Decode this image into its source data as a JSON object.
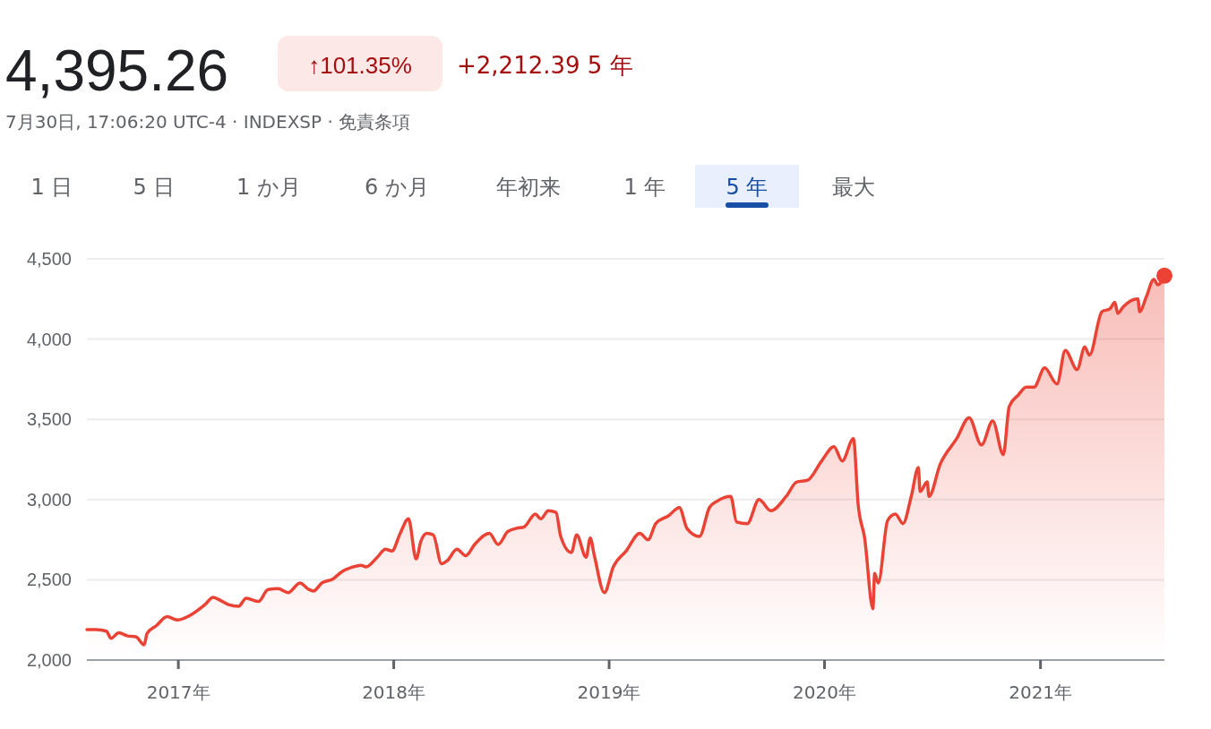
{
  "chart_data": {
    "type": "area",
    "title": "4,395.26",
    "subtitle": "7月30日, 17:06:20 UTC-4 · INDEXSP · 免責条項",
    "annotations": [
      "↑101.35%",
      "+2,212.39 5 年",
      "1 日",
      "5 日",
      "1 か月",
      "6 か月",
      "年初来",
      "1 年",
      "5 年",
      "最大"
    ],
    "xlim": [
      "2016-07-30",
      "2021-07-30"
    ],
    "xticks": [
      {
        "value": "2017-01-01",
        "label": "2017年"
      },
      {
        "value": "2018-01-01",
        "label": "2018年"
      },
      {
        "value": "2019-01-01",
        "label": "2019年"
      },
      {
        "value": "2020-01-01",
        "label": "2020年"
      },
      {
        "value": "2021-01-01",
        "label": "2021年"
      }
    ],
    "ylim": [
      2000,
      4500
    ],
    "yticks": [
      {
        "value": 2000,
        "label": "2,000"
      },
      {
        "value": 2500,
        "label": "2,500"
      },
      {
        "value": 3000,
        "label": "3,000"
      },
      {
        "value": 3500,
        "label": "3,500"
      },
      {
        "value": 4000,
        "label": "4,000"
      },
      {
        "value": 4500,
        "label": "4,500"
      }
    ],
    "grid": "y",
    "marker": "none",
    "line_style": "solid",
    "series": [
      {
        "color": "#ea4335",
        "x": [
          "2016-07-30",
          "2016-08-15",
          "2016-09-01",
          "2016-09-09",
          "2016-09-22",
          "2016-10-07",
          "2016-10-21",
          "2016-11-04",
          "2016-11-09",
          "2016-11-25",
          "2016-12-13",
          "2016-12-30",
          "2017-01-26",
          "2017-02-15",
          "2017-03-01",
          "2017-03-14",
          "2017-03-27",
          "2017-04-13",
          "2017-04-26",
          "2017-05-17",
          "2017-06-02",
          "2017-06-19",
          "2017-07-06",
          "2017-07-26",
          "2017-08-10",
          "2017-08-18",
          "2017-09-01",
          "2017-09-20",
          "2017-10-05",
          "2017-10-20",
          "2017-11-07",
          "2017-11-15",
          "2017-12-04",
          "2017-12-18",
          "2017-12-29",
          "2018-01-12",
          "2018-01-26",
          "2018-02-08",
          "2018-02-16",
          "2018-02-26",
          "2018-03-09",
          "2018-03-23",
          "2018-04-02",
          "2018-04-18",
          "2018-05-03",
          "2018-05-18",
          "2018-06-12",
          "2018-06-27",
          "2018-07-13",
          "2018-07-27",
          "2018-08-10",
          "2018-08-29",
          "2018-09-07",
          "2018-09-20",
          "2018-10-03",
          "2018-10-11",
          "2018-10-29",
          "2018-11-07",
          "2018-11-23",
          "2018-11-30",
          "2018-12-07",
          "2018-12-24",
          "2019-01-08",
          "2019-01-30",
          "2019-02-22",
          "2019-03-08",
          "2019-03-21",
          "2019-04-12",
          "2019-04-30",
          "2019-05-13",
          "2019-06-03",
          "2019-06-20",
          "2019-07-03",
          "2019-07-26",
          "2019-08-05",
          "2019-08-23",
          "2019-09-12",
          "2019-10-02",
          "2019-10-28",
          "2019-11-15",
          "2019-12-03",
          "2019-12-27",
          "2020-01-17",
          "2020-01-31",
          "2020-02-19",
          "2020-02-27",
          "2020-03-09",
          "2020-03-23",
          "2020-03-26",
          "2020-04-01",
          "2020-04-17",
          "2020-04-30",
          "2020-05-13",
          "2020-05-27",
          "2020-06-08",
          "2020-06-11",
          "2020-06-23",
          "2020-06-26",
          "2020-07-15",
          "2020-08-12",
          "2020-09-02",
          "2020-09-23",
          "2020-10-12",
          "2020-10-30",
          "2020-11-09",
          "2020-11-24",
          "2020-12-08",
          "2020-12-21",
          "2021-01-08",
          "2021-01-29",
          "2021-02-12",
          "2021-03-04",
          "2021-03-17",
          "2021-03-25",
          "2021-04-15",
          "2021-04-29",
          "2021-05-07",
          "2021-05-12",
          "2021-05-21",
          "2021-06-15",
          "2021-06-18",
          "2021-06-29",
          "2021-07-12",
          "2021-07-19",
          "2021-07-30"
        ],
        "values": [
          2190,
          2190,
          2180,
          2135,
          2170,
          2150,
          2145,
          2095,
          2165,
          2215,
          2270,
          2250,
          2290,
          2345,
          2390,
          2370,
          2345,
          2335,
          2385,
          2365,
          2440,
          2445,
          2420,
          2480,
          2440,
          2430,
          2480,
          2505,
          2550,
          2575,
          2590,
          2580,
          2640,
          2690,
          2680,
          2790,
          2880,
          2630,
          2740,
          2790,
          2780,
          2600,
          2620,
          2690,
          2650,
          2720,
          2790,
          2720,
          2800,
          2820,
          2830,
          2910,
          2880,
          2930,
          2920,
          2770,
          2670,
          2780,
          2640,
          2760,
          2650,
          2420,
          2580,
          2680,
          2790,
          2750,
          2850,
          2900,
          2950,
          2820,
          2770,
          2950,
          2990,
          3020,
          2860,
          2850,
          3000,
          2930,
          3020,
          3110,
          3120,
          3240,
          3330,
          3240,
          3380,
          2970,
          2760,
          2320,
          2540,
          2480,
          2870,
          2910,
          2850,
          3020,
          3200,
          3050,
          3110,
          3020,
          3220,
          3380,
          3510,
          3340,
          3490,
          3280,
          3580,
          3650,
          3700,
          3700,
          3820,
          3720,
          3930,
          3810,
          3950,
          3900,
          4170,
          4190,
          4230,
          4160,
          4200,
          4250,
          4170,
          4260,
          4372,
          4338,
          4395
        ]
      },
      {
        "type": "scatter",
        "marker": "circle",
        "color": "#ea4335",
        "x": [
          "2021-07-30"
        ],
        "values": [
          4395
        ]
      }
    ]
  }
}
